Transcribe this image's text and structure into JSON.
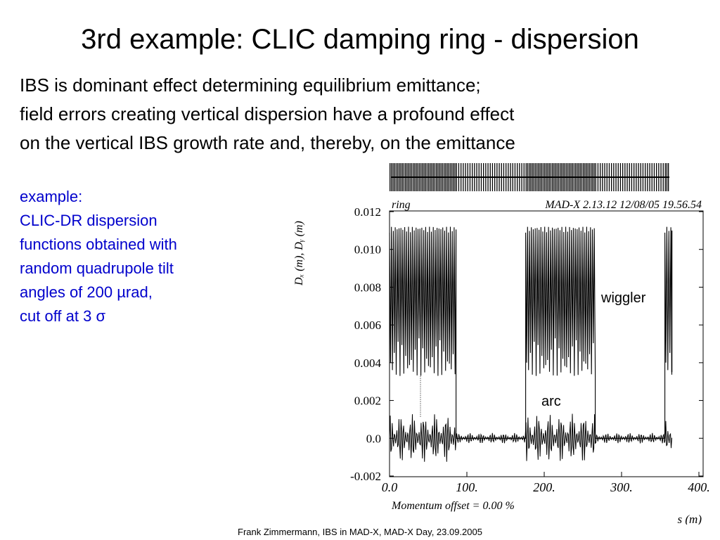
{
  "slide": {
    "title": "3rd example: CLIC damping ring - dispersion",
    "intro_lines": [
      "IBS is dominant effect determining equilibrium emittance;",
      "field errors creating vertical dispersion have a profound effect",
      "on the vertical IBS growth rate and, thereby, on the emittance"
    ],
    "note_lines": [
      "example:",
      "CLIC-DR dispersion",
      "functions obtained with",
      "random quadrupole tilt",
      "angles of 200 µrad,",
      "cut off at 3 σ"
    ],
    "footer": "Frank Zimmermann, IBS in MAD-X, MAD-X Day, 23.09.2005"
  },
  "chart_data": {
    "type": "line",
    "header_left": "ring",
    "header_right": "MAD-X 2.13.12  12/08/05 19.56.54",
    "ylabel": "Dₓ (m),  Dᵧ (m)",
    "xlabel": "s (m)",
    "footnote": "Momentum offset =     0.00 %",
    "xlim": [
      0,
      400
    ],
    "ylim": [
      -0.002,
      0.012
    ],
    "xticks": [
      "0.0",
      "100.",
      "200.",
      "300.",
      "400."
    ],
    "yticks": [
      "-0.002",
      "0.0",
      "0.002",
      "0.004",
      "0.006",
      "0.008",
      "0.010",
      "0.012"
    ],
    "annotations": [
      "wiggler",
      "arc"
    ],
    "regions": [
      {
        "name": "arc",
        "s_start": 0,
        "s_end": 86,
        "dx_min": 0.0033,
        "dx_max": 0.0112
      },
      {
        "name": "wiggler",
        "s_start": 86,
        "s_end": 176,
        "dx_min": 0.0,
        "dx_max": 0.0
      },
      {
        "name": "arc",
        "s_start": 176,
        "s_end": 266,
        "dx_min": 0.0033,
        "dx_max": 0.0112
      },
      {
        "name": "wiggler",
        "s_start": 266,
        "s_end": 356,
        "dx_min": 0.0,
        "dx_max": 0.0
      },
      {
        "name": "arc",
        "s_start": 356,
        "s_end": 365,
        "dx_min": 0.0033,
        "dx_max": 0.0112
      }
    ],
    "series": [
      {
        "values_range": [
          0.0033,
          0.0112
        ]
      },
      {
        "values_range": [
          -0.0013,
          0.0013
        ]
      }
    ]
  }
}
